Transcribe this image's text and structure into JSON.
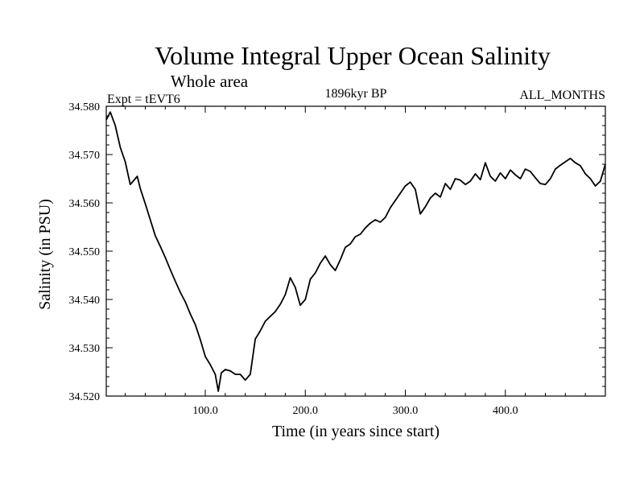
{
  "chart_data": {
    "type": "line",
    "title": "Volume Integral Upper Ocean Salinity",
    "subtitle": "Whole area",
    "left_label": "Expt = tEVT6",
    "center_label": "1896kyr BP",
    "right_label": "ALL_MONTHS",
    "xlabel": "Time (in years since start)",
    "ylabel": "Salinity (in PSU)",
    "xlim": [
      1,
      500
    ],
    "ylim": [
      34.52,
      34.58
    ],
    "x_ticks": [
      100,
      200,
      300,
      400
    ],
    "x_tick_labels": [
      "100.0",
      "200.0",
      "300.0",
      "400.0"
    ],
    "y_ticks": [
      34.52,
      34.53,
      34.54,
      34.55,
      34.56,
      34.57,
      34.58
    ],
    "y_tick_labels": [
      "34.520",
      "34.530",
      "34.540",
      "34.550",
      "34.560",
      "34.570",
      "34.580"
    ],
    "series": [
      {
        "name": "salinity",
        "color": "#000000",
        "x": [
          1,
          5,
          10,
          15,
          20,
          25,
          28,
          32,
          35,
          40,
          45,
          50,
          55,
          60,
          65,
          70,
          75,
          80,
          85,
          90,
          95,
          100,
          105,
          110,
          113,
          116,
          120,
          125,
          130,
          135,
          140,
          145,
          150,
          155,
          160,
          165,
          170,
          175,
          180,
          185,
          190,
          195,
          200,
          205,
          210,
          215,
          220,
          225,
          230,
          235,
          240,
          245,
          250,
          255,
          260,
          265,
          270,
          275,
          280,
          285,
          290,
          295,
          300,
          305,
          310,
          315,
          320,
          325,
          330,
          335,
          340,
          345,
          350,
          355,
          360,
          365,
          370,
          375,
          380,
          385,
          390,
          395,
          400,
          405,
          410,
          415,
          420,
          425,
          430,
          435,
          440,
          445,
          450,
          455,
          460,
          465,
          470,
          475,
          480,
          485,
          490,
          495,
          500
        ],
        "values": [
          34.5772,
          34.5788,
          34.576,
          34.5715,
          34.5685,
          34.5638,
          34.5645,
          34.5655,
          34.563,
          34.5598,
          34.5565,
          34.5532,
          34.551,
          34.5487,
          34.5462,
          34.5438,
          34.5415,
          34.5395,
          34.537,
          34.5348,
          34.5317,
          34.5282,
          34.5265,
          34.5245,
          34.521,
          34.5248,
          34.5255,
          34.5252,
          34.5245,
          34.5245,
          34.5233,
          34.5245,
          34.5318,
          34.5335,
          34.5355,
          34.5365,
          34.5375,
          34.539,
          34.541,
          34.5445,
          34.5425,
          34.5388,
          34.54,
          34.5442,
          34.5455,
          34.5475,
          34.549,
          34.5472,
          34.546,
          34.5482,
          34.5508,
          34.5515,
          34.553,
          34.5535,
          34.5548,
          34.5558,
          34.5565,
          34.556,
          34.557,
          34.559,
          34.5605,
          34.562,
          34.5635,
          34.5643,
          34.5628,
          34.5577,
          34.5592,
          34.561,
          34.562,
          34.5612,
          34.564,
          34.5628,
          34.565,
          34.5647,
          34.5638,
          34.5645,
          34.566,
          34.5648,
          34.5683,
          34.5655,
          34.5645,
          34.5662,
          34.565,
          34.5668,
          34.5658,
          34.565,
          34.567,
          34.5665,
          34.5652,
          34.564,
          34.5638,
          34.565,
          34.567,
          34.5678,
          34.5685,
          34.5692,
          34.5683,
          34.5677,
          34.566,
          34.565,
          34.5635,
          34.5645,
          34.568
        ]
      }
    ]
  }
}
